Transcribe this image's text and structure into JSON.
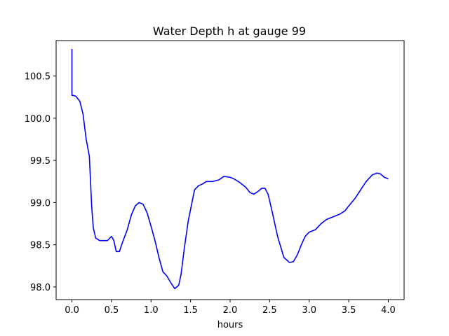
{
  "chart_data": {
    "type": "line",
    "title": "Water Depth h at gauge 99",
    "xlabel": "hours",
    "ylabel": "",
    "xlim": [
      -0.2,
      4.2
    ],
    "ylim": [
      97.85,
      100.92
    ],
    "xticks": [
      0.0,
      0.5,
      1.0,
      1.5,
      2.0,
      2.5,
      3.0,
      3.5,
      4.0
    ],
    "xtick_labels": [
      "0.0",
      "0.5",
      "1.0",
      "1.5",
      "2.0",
      "2.5",
      "3.0",
      "3.5",
      "4.0"
    ],
    "yticks": [
      98.0,
      98.5,
      99.0,
      99.5,
      100.0,
      100.5
    ],
    "ytick_labels": [
      "98.0",
      "98.5",
      "99.0",
      "99.5",
      "100.0",
      "100.5"
    ],
    "grid": false,
    "series": [
      {
        "color": "#0000ff",
        "x": [
          0.0,
          0.0,
          0.02,
          0.05,
          0.1,
          0.14,
          0.18,
          0.22,
          0.25,
          0.27,
          0.3,
          0.35,
          0.4,
          0.45,
          0.5,
          0.53,
          0.56,
          0.6,
          0.64,
          0.7,
          0.75,
          0.8,
          0.85,
          0.9,
          0.95,
          1.0,
          1.05,
          1.1,
          1.15,
          1.2,
          1.25,
          1.3,
          1.35,
          1.38,
          1.42,
          1.47,
          1.55,
          1.6,
          1.65,
          1.7,
          1.78,
          1.86,
          1.92,
          2.0,
          2.05,
          2.12,
          2.2,
          2.25,
          2.3,
          2.35,
          2.4,
          2.44,
          2.48,
          2.53,
          2.6,
          2.68,
          2.75,
          2.8,
          2.85,
          2.9,
          2.95,
          3.0,
          3.08,
          3.15,
          3.22,
          3.3,
          3.38,
          3.45,
          3.5,
          3.58,
          3.65,
          3.72,
          3.8,
          3.86,
          3.9,
          3.95,
          4.0
        ],
        "y": [
          100.82,
          100.27,
          100.27,
          100.26,
          100.2,
          100.05,
          99.75,
          99.55,
          98.95,
          98.7,
          98.58,
          98.55,
          98.55,
          98.55,
          98.6,
          98.55,
          98.42,
          98.42,
          98.53,
          98.68,
          98.85,
          98.96,
          99.0,
          98.98,
          98.88,
          98.72,
          98.55,
          98.35,
          98.18,
          98.13,
          98.05,
          97.98,
          98.02,
          98.15,
          98.45,
          98.78,
          99.15,
          99.2,
          99.22,
          99.25,
          99.25,
          99.27,
          99.31,
          99.3,
          99.28,
          99.24,
          99.18,
          99.12,
          99.1,
          99.13,
          99.17,
          99.17,
          99.1,
          98.9,
          98.6,
          98.35,
          98.29,
          98.3,
          98.38,
          98.5,
          98.6,
          98.65,
          98.68,
          98.75,
          98.8,
          98.83,
          98.86,
          98.9,
          98.96,
          99.05,
          99.15,
          99.25,
          99.33,
          99.35,
          99.34,
          99.3,
          99.28
        ]
      }
    ]
  }
}
